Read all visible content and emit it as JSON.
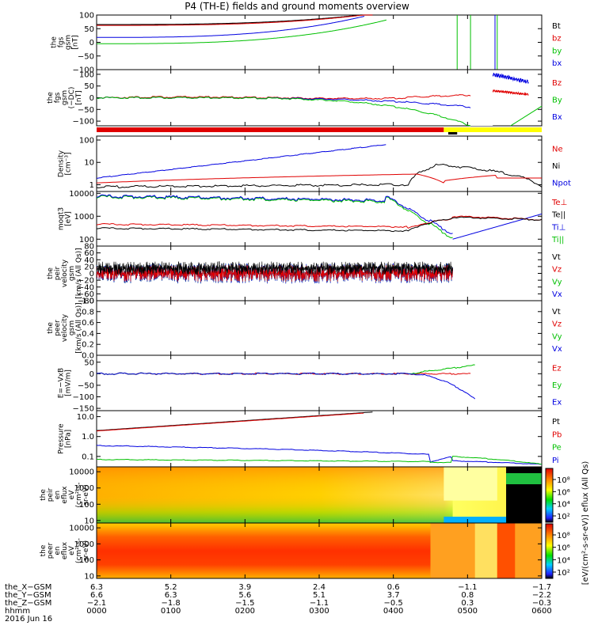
{
  "title": "P4 (TH-E) fields and ground moments overview",
  "date": "2016 Jun 16",
  "time_labels": [
    "0000",
    "0100",
    "0200",
    "0300",
    "0400",
    "0500",
    "0600"
  ],
  "panels": [
    {
      "id": "fgs",
      "ylabel": [
        "the",
        "fgs",
        "gsm",
        "[nT]"
      ],
      "yticks": [
        "100",
        "50",
        "0",
        "−50",
        "−100"
      ],
      "ytick_values": [
        100,
        50,
        0,
        -50,
        -100
      ],
      "ylim": [
        -100,
        100
      ],
      "legend": [
        {
          "text": "Bt",
          "color": "#000000"
        },
        {
          "text": "bz",
          "color": "#e00000"
        },
        {
          "text": "by",
          "color": "#00c000"
        },
        {
          "text": "bx",
          "color": "#0000e0"
        }
      ]
    },
    {
      "id": "fgs_dc",
      "ylabel": [
        "the",
        "fgs",
        "gsm",
        "(−DC)",
        "[nT]"
      ],
      "yticks": [
        "100",
        "50",
        "0",
        "−50",
        "−100"
      ],
      "ytick_values": [
        100,
        50,
        0,
        -50,
        -100
      ],
      "ylim": [
        -120,
        120
      ],
      "legend": [
        {
          "text": "Bz",
          "color": "#e00000"
        },
        {
          "text": "By",
          "color": "#00c000"
        },
        {
          "text": "Bx",
          "color": "#0000e0"
        }
      ]
    },
    {
      "id": "density",
      "ylabel": [
        "Density",
        "[cm⁻³]"
      ],
      "yticks": [
        "100",
        "10",
        "1"
      ],
      "ytick_values": [
        100,
        10,
        1
      ],
      "ylim": [
        0.5,
        150
      ],
      "log": true,
      "legend": [
        {
          "text": "Ne",
          "color": "#e00000"
        },
        {
          "text": "Ni",
          "color": "#000000"
        },
        {
          "text": "Npot",
          "color": "#0000e0"
        }
      ]
    },
    {
      "id": "temp",
      "ylabel": [
        "moqt3",
        "[eV]"
      ],
      "yticks": [
        "10000",
        "1000",
        "100"
      ],
      "ytick_values": [
        10000,
        1000,
        100
      ],
      "ylim": [
        50,
        12000
      ],
      "log": true,
      "legend": [
        {
          "text": "Te⊥",
          "color": "#e00000"
        },
        {
          "text": "Te||",
          "color": "#000000"
        },
        {
          "text": "Ti⊥",
          "color": "#0000e0"
        },
        {
          "text": "Ti||",
          "color": "#00c000"
        }
      ]
    },
    {
      "id": "peir_vel",
      "ylabel": [
        "the",
        "peir",
        "velocity",
        "gsm",
        "[km/s (All Qs)]"
      ],
      "yticks": [
        "80",
        "60",
        "40",
        "20",
        "0",
        "−20",
        "−40",
        "−60",
        "−80"
      ],
      "ytick_values": [
        80,
        60,
        40,
        20,
        0,
        -20,
        -40,
        -60,
        -80
      ],
      "ylim": [
        -80,
        80
      ],
      "legend": [
        {
          "text": "Vt",
          "color": "#000000"
        },
        {
          "text": "Vz",
          "color": "#e00000"
        },
        {
          "text": "Vy",
          "color": "#00c000"
        },
        {
          "text": "Vx",
          "color": "#0000e0"
        }
      ]
    },
    {
      "id": "peer_vel",
      "ylabel": [
        "the",
        "peer",
        "velocity",
        "gsm",
        "[km/s (All Qs)]"
      ],
      "yticks": [
        "1.0",
        "0.8",
        "0.6",
        "0.4",
        "0.2",
        "0.0"
      ],
      "ytick_values": [
        1.0,
        0.8,
        0.6,
        0.4,
        0.2,
        0.0
      ],
      "ylim": [
        0,
        1
      ],
      "legend": [
        {
          "text": "Vt",
          "color": "#000000"
        },
        {
          "text": "Vz",
          "color": "#e00000"
        },
        {
          "text": "Vy",
          "color": "#00c000"
        },
        {
          "text": "Vx",
          "color": "#0000e0"
        }
      ]
    },
    {
      "id": "efield",
      "ylabel": [
        "E=−VxB",
        "[mV/m]"
      ],
      "yticks": [
        "50",
        "0",
        "−50",
        "−100",
        "−150"
      ],
      "ytick_values": [
        50,
        0,
        -50,
        -100,
        -150
      ],
      "ylim": [
        -160,
        80
      ],
      "legend": [
        {
          "text": "Ez",
          "color": "#e00000"
        },
        {
          "text": "Ey",
          "color": "#00c000"
        },
        {
          "text": "Ex",
          "color": "#0000e0"
        }
      ]
    },
    {
      "id": "pressure",
      "ylabel": [
        "Pressure",
        "[nPa]"
      ],
      "yticks": [
        "10.0",
        "1.0",
        "0.1"
      ],
      "ytick_values": [
        10,
        1,
        0.1
      ],
      "ylim": [
        0.03,
        20
      ],
      "log": true,
      "legend": [
        {
          "text": "Pt",
          "color": "#000000"
        },
        {
          "text": "Pb",
          "color": "#e00000"
        },
        {
          "text": "Pe",
          "color": "#00c000"
        },
        {
          "text": "Pi",
          "color": "#0000e0"
        }
      ]
    },
    {
      "id": "peir_spec",
      "ylabel": [
        "the",
        "peir",
        "en",
        "eflux",
        "eV",
        "(cm²-s-",
        "sr-eV)"
      ],
      "yticks": [
        "10000",
        "1000",
        "100",
        "10"
      ],
      "ytick_values": [
        10000,
        1000,
        100,
        10
      ],
      "ylim": [
        7,
        20000
      ],
      "log": true,
      "legend": []
    },
    {
      "id": "peer_spec",
      "ylabel": [
        "the",
        "peer",
        "en",
        "eflux",
        "eV",
        "(cm²-s-",
        "sr-eV)"
      ],
      "yticks": [
        "10000",
        "1000",
        "100",
        "10"
      ],
      "ytick_values": [
        10000,
        1000,
        100,
        10
      ],
      "ylim": [
        7,
        20000
      ],
      "log": true,
      "legend": []
    }
  ],
  "colorbar": {
    "label": "[eV/(cm²-s-sr-eV)]  eflux (All Qs)",
    "ticks": [
      "10⁸",
      "10⁶",
      "10⁴",
      "10²"
    ]
  },
  "colorbar2": {
    "ticks": [
      "10⁸",
      "10⁶",
      "10⁴",
      "10²"
    ]
  },
  "footer": {
    "rows": [
      {
        "label": "the_X−GSM",
        "values": [
          "6.3",
          "5.2",
          "3.9",
          "2.4",
          "0.6",
          "−1.1",
          "−1.7"
        ]
      },
      {
        "label": "the_Y−GSM",
        "values": [
          "6.6",
          "6.3",
          "5.6",
          "5.1",
          "3.7",
          "0.8",
          "−2.2"
        ]
      },
      {
        "label": "the_Z−GSM",
        "values": [
          "−2.1",
          "−1.8",
          "−1.5",
          "−1.1",
          "−0.5",
          "0.3",
          "−0.3"
        ]
      },
      {
        "label": "hhmm",
        "values": [
          "0000",
          "0100",
          "0200",
          "0300",
          "0400",
          "0500",
          "0600"
        ]
      }
    ]
  },
  "chart_data": {
    "type": "line",
    "title": "P4 (TH-E) fields and ground moments overview",
    "x_label": "hhmm",
    "x": [
      "0000",
      "0100",
      "0200",
      "0300",
      "0400",
      "0500",
      "0600"
    ],
    "series": [
      {
        "name": "Bt",
        "values": [
          65,
          70,
          80,
          95,
          null,
          null,
          null
        ]
      },
      {
        "name": "bz",
        "values": [
          62,
          68,
          78,
          92,
          null,
          null,
          null
        ]
      },
      {
        "name": "by",
        "values": [
          -5,
          0,
          10,
          30,
          null,
          null,
          null
        ]
      },
      {
        "name": "bx",
        "values": [
          15,
          20,
          35,
          60,
          null,
          null,
          null
        ]
      },
      {
        "name": "Ni",
        "values": [
          1.1,
          1.0,
          1.0,
          1.0,
          7,
          1,
          1
        ]
      },
      {
        "name": "Npot",
        "values": [
          2,
          4,
          10,
          40,
          null,
          null,
          null
        ]
      },
      {
        "name": "Ti⊥",
        "values": [
          6000,
          5500,
          4000,
          3000,
          500,
          600,
          700
        ]
      },
      {
        "name": "Te⊥",
        "values": [
          400,
          350,
          300,
          300,
          1000,
          700,
          700
        ]
      }
    ]
  }
}
